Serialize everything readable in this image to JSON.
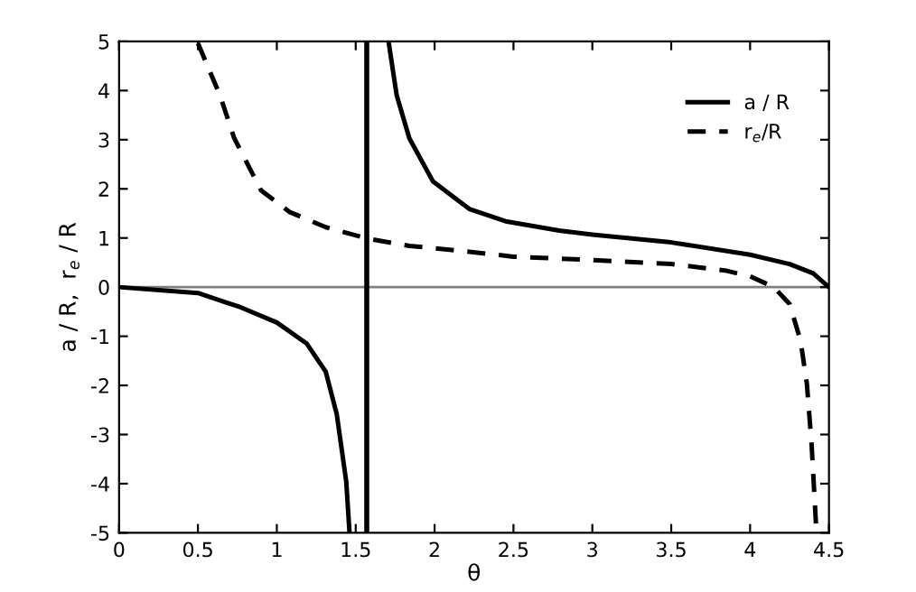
{
  "chart_data": {
    "type": "line",
    "xlabel": "θ",
    "ylabel": "a / R,  r$_{e}$ / R",
    "xlim": [
      0,
      4.5
    ],
    "ylim": [
      -5,
      5
    ],
    "xticks": [
      0,
      0.5,
      1,
      1.5,
      2,
      2.5,
      3,
      3.5,
      4,
      4.5
    ],
    "yticks": [
      -5,
      -4,
      -3,
      -2,
      -1,
      0,
      1,
      2,
      3,
      4,
      5
    ],
    "grid": false,
    "legend": "top right",
    "series": [
      {
        "name": "a / R",
        "color": "#000000",
        "line_style": "solid",
        "x": [
          0,
          0.5,
          0.77,
          1.0,
          1.19,
          1.31,
          1.38,
          1.44,
          1.46,
          null,
          1.71,
          1.76,
          1.84,
          1.99,
          2.22,
          2.45,
          2.79,
          3.0,
          3.5,
          4.0,
          4.25,
          4.4,
          4.5
        ],
        "values": [
          0,
          -0.12,
          -0.41,
          -0.72,
          -1.15,
          -1.72,
          -2.59,
          -3.96,
          -4.96,
          null,
          4.96,
          3.9,
          3.03,
          2.15,
          1.59,
          1.34,
          1.15,
          1.07,
          0.91,
          0.66,
          0.47,
          0.28,
          0
        ]
      },
      {
        "name": "r$_{e}$/R",
        "color": "#000000",
        "line_style": "dashed",
        "x": [
          0.5,
          0.64,
          0.73,
          0.9,
          1.08,
          1.31,
          1.57,
          1.84,
          2.22,
          2.5,
          3.0,
          3.5,
          3.84,
          4.0,
          4.15,
          4.25,
          4.32,
          4.36,
          4.39,
          4.42
        ],
        "values": [
          4.96,
          3.9,
          3.03,
          1.97,
          1.53,
          1.22,
          0.99,
          0.84,
          0.72,
          0.62,
          0.55,
          0.47,
          0.34,
          0.22,
          0,
          -0.34,
          -1.09,
          -1.97,
          -3.21,
          -4.96
        ]
      }
    ],
    "ref_lines": [
      {
        "axis": "y",
        "value": 0,
        "color": "#808080"
      },
      {
        "axis": "x",
        "value": 1.57,
        "color": "#000000"
      }
    ]
  }
}
